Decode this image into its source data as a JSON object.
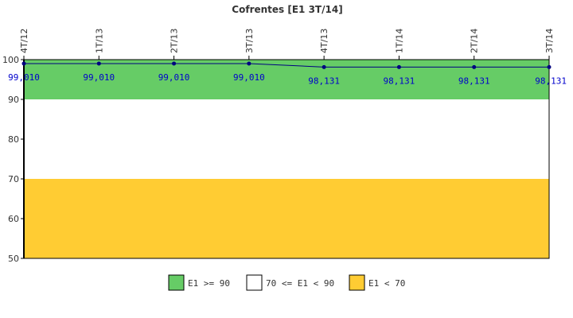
{
  "chart_data": {
    "type": "line",
    "title": "Cofrentes [E1 3T/14]",
    "categories": [
      "4T/12",
      "1T/13",
      "2T/13",
      "3T/13",
      "4T/13",
      "1T/14",
      "2T/14",
      "3T/14"
    ],
    "series": [
      {
        "values": [
          99.01,
          99.01,
          99.01,
          99.01,
          98.131,
          98.131,
          98.131,
          98.131
        ],
        "labels": [
          "99,010",
          "99,010",
          "99,010",
          "99,010",
          "98,131",
          "98,131",
          "98,131",
          "98,131"
        ],
        "color": "#000080"
      }
    ],
    "ylim": [
      50,
      100
    ],
    "yticks": [
      50,
      60,
      70,
      80,
      90,
      100
    ],
    "bands": [
      {
        "label": "E1 >= 90",
        "from": 90,
        "to": 100,
        "color": "#66cc66"
      },
      {
        "label": "70 <= E1 < 90",
        "from": 70,
        "to": 90,
        "color": "#ffffff"
      },
      {
        "label": "E1 < 70",
        "from": 50,
        "to": 70,
        "color": "#ffcc33"
      }
    ],
    "grid": false,
    "legend": "bottom-center"
  }
}
